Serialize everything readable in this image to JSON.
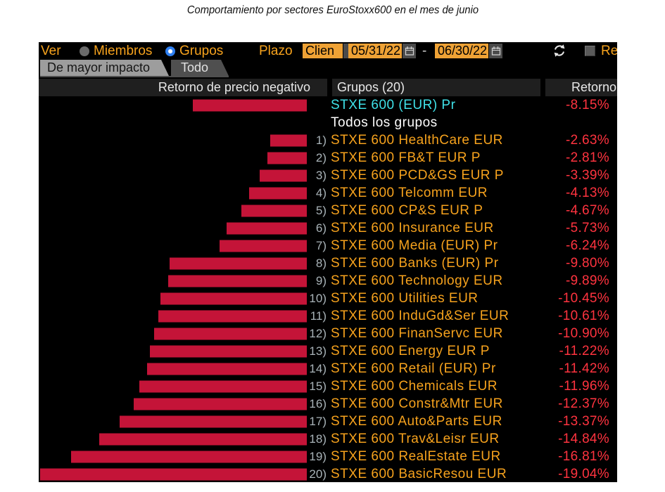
{
  "page_title": "Comportamiento por sectores EuroStoxx600 en el mes de junio",
  "window": {
    "toolbar": {
      "ver_label": "Ver",
      "members_radio_label": "Miembros",
      "groups_radio_label": "Grupos",
      "plazo_label": "Plazo",
      "period_field_value": "Clien",
      "start_date": "05/31/22",
      "date_separator": "-",
      "end_date": "06/30/22",
      "reg_checkbox_label": "Re"
    },
    "tabs": {
      "impact_tab": "De mayor impacto",
      "all_tab": "Todo"
    },
    "header": {
      "bar_col": "Retorno de precio negativo",
      "groups_col": "Grupos (20)",
      "return_col": "Retorno"
    }
  },
  "icons": {
    "dropdown_arrow": "▼",
    "calendar": "calendar-grid-glyph",
    "refresh": "circular-arrows-glyph",
    "checkbox": "empty-square"
  },
  "colors": {
    "bar": "#C41438",
    "value_red": "#FF333F",
    "label_orange": "#F6A21D",
    "index_cyan": "#3FE1E8",
    "amber_field": "#EFA235",
    "radio_blue": "#2F80F2"
  },
  "chart_data": {
    "type": "bar",
    "orientation": "horizontal-right-aligned",
    "title": "Retorno de precio negativo",
    "unit": "%",
    "value_range": [
      0,
      -19.04
    ],
    "rows": [
      {
        "num": "",
        "label": "STXE 600 (EUR) Pr",
        "value": -8.15,
        "style": "index"
      },
      {
        "num": "",
        "label": "Todos los grupos",
        "value": null,
        "style": "group-all"
      },
      {
        "num": "1)",
        "label": "STXE 600 HealthCare EUR",
        "value": -2.63,
        "style": "group"
      },
      {
        "num": "2)",
        "label": "STXE 600 FB&T EUR P",
        "value": -2.81,
        "style": "group"
      },
      {
        "num": "3)",
        "label": "STXE 600 PCD&GS EUR P",
        "value": -3.39,
        "style": "group"
      },
      {
        "num": "4)",
        "label": "STXE 600 Telcomm EUR",
        "value": -4.13,
        "style": "group"
      },
      {
        "num": "5)",
        "label": "STXE 600 CP&S EUR P",
        "value": -4.67,
        "style": "group"
      },
      {
        "num": "6)",
        "label": "STXE 600 Insurance EUR",
        "value": -5.73,
        "style": "group"
      },
      {
        "num": "7)",
        "label": "STXE 600 Media (EUR) Pr",
        "value": -6.24,
        "style": "group"
      },
      {
        "num": "8)",
        "label": "STXE 600 Banks (EUR) Pr",
        "value": -9.8,
        "style": "group"
      },
      {
        "num": "9)",
        "label": "STXE 600 Technology EUR",
        "value": -9.89,
        "style": "group"
      },
      {
        "num": "10)",
        "label": "STXE 600 Utilities EUR",
        "value": -10.45,
        "style": "group"
      },
      {
        "num": "11)",
        "label": "STXE 600 InduGd&Ser EUR",
        "value": -10.61,
        "style": "group"
      },
      {
        "num": "12)",
        "label": "STXE 600 FinanServc EUR",
        "value": -10.9,
        "style": "group"
      },
      {
        "num": "13)",
        "label": "STXE 600 Energy EUR P",
        "value": -11.22,
        "style": "group"
      },
      {
        "num": "14)",
        "label": "STXE 600 Retail (EUR) Pr",
        "value": -11.42,
        "style": "group"
      },
      {
        "num": "15)",
        "label": "STXE 600 Chemicals EUR",
        "value": -11.96,
        "style": "group"
      },
      {
        "num": "16)",
        "label": "STXE 600 Constr&Mtr EUR",
        "value": -12.37,
        "style": "group"
      },
      {
        "num": "17)",
        "label": "STXE 600 Auto&Parts EUR",
        "value": -13.37,
        "style": "group"
      },
      {
        "num": "18)",
        "label": "STXE 600 Trav&Leisr EUR",
        "value": -14.84,
        "style": "group"
      },
      {
        "num": "19)",
        "label": "STXE 600 RealEstate EUR",
        "value": -16.81,
        "style": "group"
      },
      {
        "num": "20)",
        "label": "STXE 600 BasicResou EUR",
        "value": -19.04,
        "style": "group"
      }
    ]
  }
}
